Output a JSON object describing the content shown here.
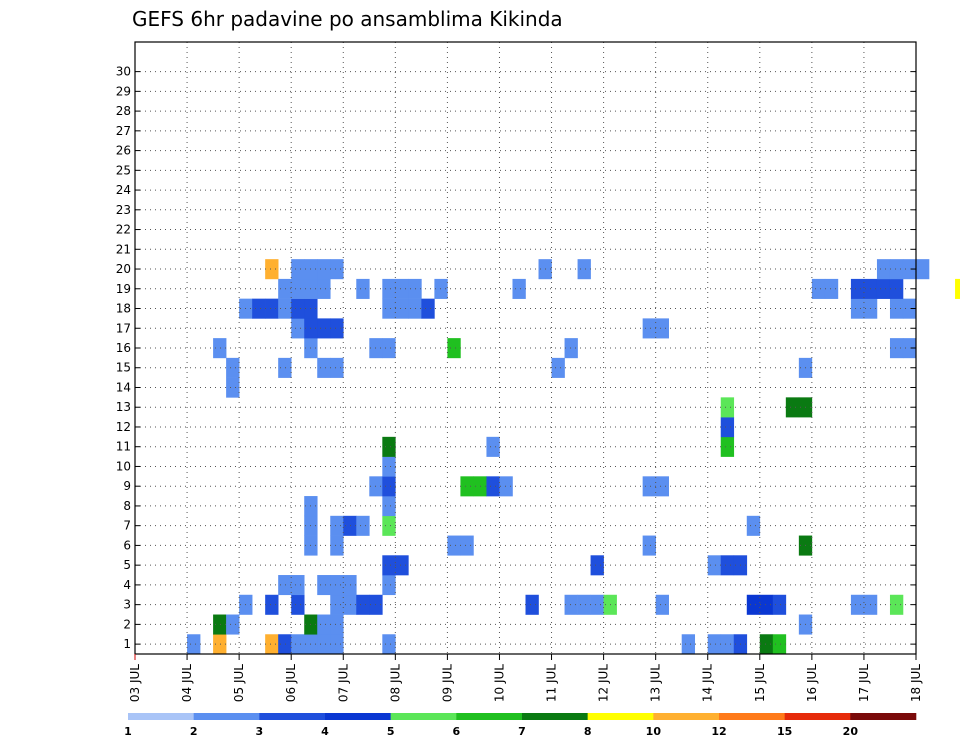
{
  "chart_data": {
    "type": "heatmap",
    "title": "GEFS 6hr padavine po ansamblima Kikinda",
    "x_labels": [
      "03 JUL",
      "04 JUL",
      "05 JUL",
      "06 JUL",
      "07 JUL",
      "08 JUL",
      "09 JUL",
      "10 JUL",
      "11 JUL",
      "12 JUL",
      "13 JUL",
      "14 JUL",
      "15 JUL",
      "16 JUL",
      "17 JUL",
      "18 JUL"
    ],
    "y_labels": [
      "1",
      "2",
      "3",
      "4",
      "5",
      "6",
      "7",
      "8",
      "9",
      "10",
      "11",
      "12",
      "13",
      "14",
      "15",
      "16",
      "17",
      "18",
      "19",
      "20",
      "21",
      "22",
      "23",
      "24",
      "25",
      "26",
      "27",
      "28",
      "29",
      "30"
    ],
    "members": 31,
    "steps_per_day": 4,
    "grid": true,
    "colorbar": {
      "labels": [
        "1",
        "2",
        "3",
        "4",
        "5",
        "6",
        "7",
        "8",
        "10",
        "12",
        "15",
        "20"
      ],
      "colors": [
        "#a9c4f7",
        "#5b8ff0",
        "#1f4fdc",
        "#0a37d2",
        "#5be658",
        "#20c020",
        "#0a7a12",
        "#ffff00",
        "#ffb030",
        "#ff7a1a",
        "#e62a0a",
        "#7a0a0a"
      ]
    },
    "cells": [
      [
        1.0,
        0,
        1
      ],
      [
        1.5,
        0,
        8
      ],
      [
        2.5,
        0,
        8
      ],
      [
        2.75,
        0,
        2
      ],
      [
        3.0,
        0,
        1
      ],
      [
        3.25,
        0,
        1
      ],
      [
        3.5,
        0,
        1
      ],
      [
        3.75,
        0,
        1
      ],
      [
        4.75,
        0,
        1
      ],
      [
        10.5,
        0,
        1
      ],
      [
        11.0,
        0,
        1
      ],
      [
        11.25,
        0,
        1
      ],
      [
        11.5,
        0,
        2
      ],
      [
        12.0,
        0,
        6
      ],
      [
        12.25,
        0,
        5
      ],
      [
        1.5,
        1,
        6
      ],
      [
        1.75,
        1,
        1
      ],
      [
        3.25,
        1,
        6
      ],
      [
        3.5,
        1,
        1
      ],
      [
        3.75,
        1,
        1
      ],
      [
        12.75,
        1,
        1
      ],
      [
        2.0,
        2,
        1
      ],
      [
        2.5,
        2,
        2
      ],
      [
        3.0,
        2,
        2
      ],
      [
        3.75,
        2,
        1
      ],
      [
        4.0,
        2,
        1
      ],
      [
        4.25,
        2,
        2
      ],
      [
        4.5,
        2,
        2
      ],
      [
        7.5,
        2,
        2
      ],
      [
        8.25,
        2,
        1
      ],
      [
        8.5,
        2,
        1
      ],
      [
        8.75,
        2,
        1
      ],
      [
        9.0,
        2,
        4
      ],
      [
        10.0,
        2,
        1
      ],
      [
        11.75,
        2,
        3
      ],
      [
        12.0,
        2,
        3
      ],
      [
        12.25,
        2,
        2
      ],
      [
        13.75,
        2,
        1
      ],
      [
        14.0,
        2,
        1
      ],
      [
        14.5,
        2,
        4
      ],
      [
        2.75,
        3,
        1
      ],
      [
        3.0,
        3,
        1
      ],
      [
        3.5,
        3,
        1
      ],
      [
        3.75,
        3,
        1
      ],
      [
        4.0,
        3,
        1
      ],
      [
        4.75,
        3,
        1
      ],
      [
        4.75,
        4,
        2
      ],
      [
        5.0,
        4,
        2
      ],
      [
        8.75,
        4,
        2
      ],
      [
        11.0,
        4,
        1
      ],
      [
        11.25,
        4,
        2
      ],
      [
        11.5,
        4,
        2
      ],
      [
        3.25,
        5,
        1
      ],
      [
        3.75,
        5,
        1
      ],
      [
        6.0,
        5,
        1
      ],
      [
        6.25,
        5,
        1
      ],
      [
        9.75,
        5,
        1
      ],
      [
        12.75,
        5,
        6
      ],
      [
        3.25,
        6,
        1
      ],
      [
        3.75,
        6,
        1
      ],
      [
        4.0,
        6,
        2
      ],
      [
        4.25,
        6,
        1
      ],
      [
        4.75,
        6,
        4
      ],
      [
        11.75,
        6,
        1
      ],
      [
        3.25,
        7,
        1
      ],
      [
        4.75,
        7,
        1
      ],
      [
        4.5,
        8,
        1
      ],
      [
        4.75,
        8,
        2
      ],
      [
        6.25,
        8,
        5
      ],
      [
        6.5,
        8,
        5
      ],
      [
        6.75,
        8,
        2
      ],
      [
        7.0,
        8,
        1
      ],
      [
        9.75,
        8,
        1
      ],
      [
        10.0,
        8,
        1
      ],
      [
        4.75,
        9,
        1
      ],
      [
        4.75,
        10,
        6
      ],
      [
        6.75,
        10,
        1
      ],
      [
        11.25,
        10,
        5
      ],
      [
        11.25,
        11,
        2
      ],
      [
        11.25,
        12,
        4
      ],
      [
        12.5,
        12,
        6
      ],
      [
        12.75,
        12,
        6
      ],
      [
        1.75,
        13,
        1
      ],
      [
        1.75,
        14,
        1
      ],
      [
        2.75,
        14,
        1
      ],
      [
        3.5,
        14,
        1
      ],
      [
        3.75,
        14,
        1
      ],
      [
        8.0,
        14,
        1
      ],
      [
        12.75,
        14,
        1
      ],
      [
        1.5,
        15,
        1
      ],
      [
        3.25,
        15,
        1
      ],
      [
        4.5,
        15,
        1
      ],
      [
        4.75,
        15,
        1
      ],
      [
        6.0,
        15,
        5
      ],
      [
        8.25,
        15,
        1
      ],
      [
        14.5,
        15,
        1
      ],
      [
        14.75,
        15,
        1
      ],
      [
        3.0,
        16,
        1
      ],
      [
        3.25,
        16,
        2
      ],
      [
        3.5,
        16,
        2
      ],
      [
        3.75,
        16,
        2
      ],
      [
        9.75,
        16,
        1
      ],
      [
        10.0,
        16,
        1
      ],
      [
        2.0,
        17,
        1
      ],
      [
        2.25,
        17,
        2
      ],
      [
        2.5,
        17,
        2
      ],
      [
        2.75,
        17,
        1
      ],
      [
        3.0,
        17,
        2
      ],
      [
        3.25,
        17,
        2
      ],
      [
        4.75,
        17,
        1
      ],
      [
        5.0,
        17,
        1
      ],
      [
        5.25,
        17,
        1
      ],
      [
        5.5,
        17,
        2
      ],
      [
        13.75,
        17,
        1
      ],
      [
        14.0,
        17,
        1
      ],
      [
        14.5,
        17,
        1
      ],
      [
        14.75,
        17,
        1
      ],
      [
        2.75,
        18,
        1
      ],
      [
        3.0,
        18,
        1
      ],
      [
        3.25,
        18,
        1
      ],
      [
        3.5,
        18,
        1
      ],
      [
        4.25,
        18,
        1
      ],
      [
        4.75,
        18,
        1
      ],
      [
        5.0,
        18,
        1
      ],
      [
        5.25,
        18,
        1
      ],
      [
        5.75,
        18,
        1
      ],
      [
        7.25,
        18,
        1
      ],
      [
        13.0,
        18,
        1
      ],
      [
        13.25,
        18,
        1
      ],
      [
        13.75,
        18,
        2
      ],
      [
        14.0,
        18,
        2
      ],
      [
        14.25,
        18,
        2
      ],
      [
        14.5,
        18,
        2
      ],
      [
        15.75,
        18,
        7
      ],
      [
        2.5,
        19,
        8
      ],
      [
        3.0,
        19,
        1
      ],
      [
        3.25,
        19,
        1
      ],
      [
        3.5,
        19,
        1
      ],
      [
        3.75,
        19,
        1
      ],
      [
        7.75,
        19,
        1
      ],
      [
        8.5,
        19,
        1
      ],
      [
        14.25,
        19,
        1
      ],
      [
        14.5,
        19,
        1
      ],
      [
        14.75,
        19,
        1
      ],
      [
        15.0,
        19,
        1
      ]
    ]
  }
}
